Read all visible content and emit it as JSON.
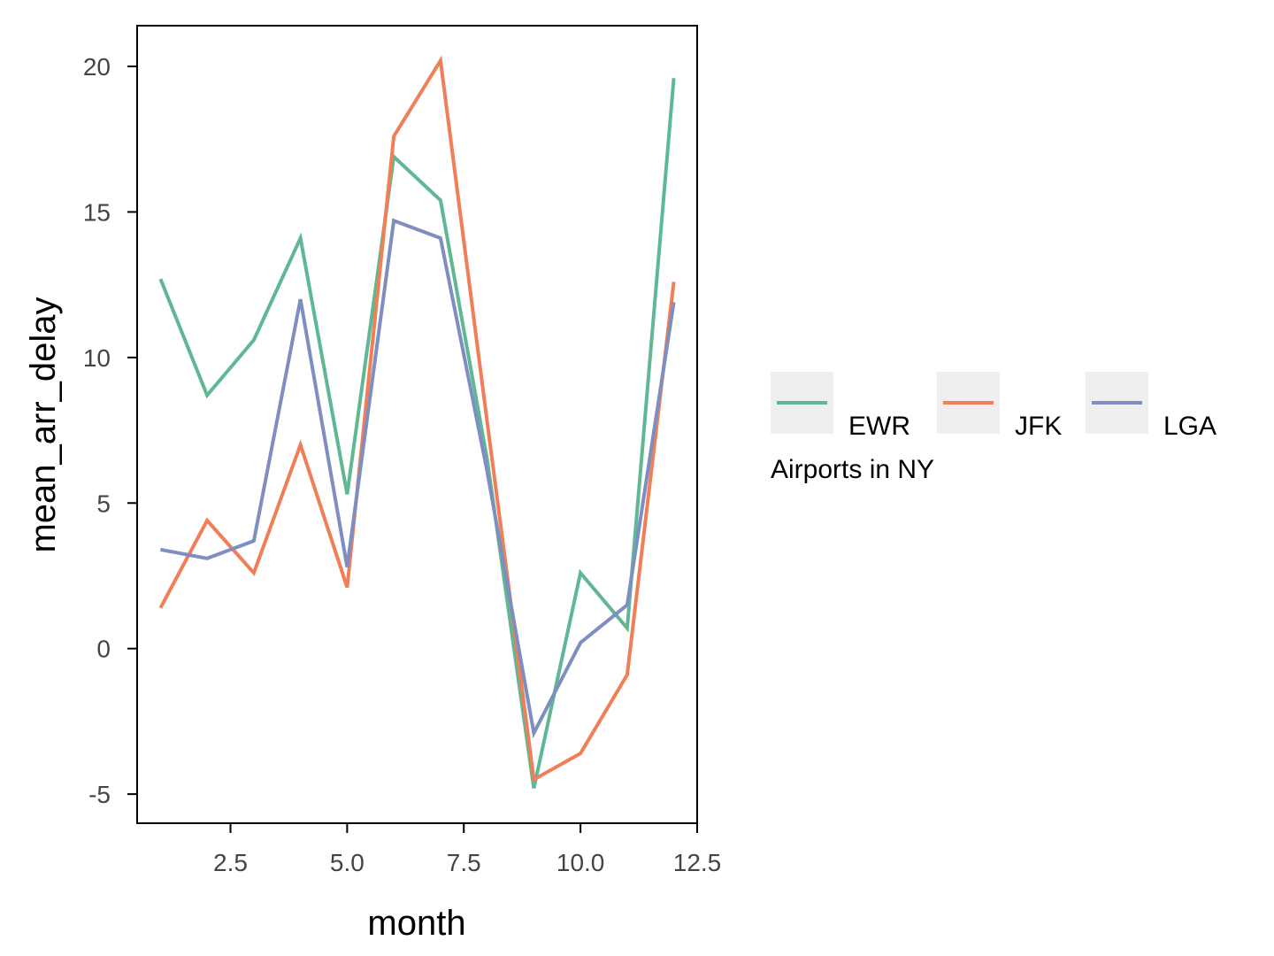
{
  "chart_data": {
    "type": "line",
    "xlabel": "month",
    "ylabel": "mean_arr_delay",
    "xlim": [
      0.5,
      12.5
    ],
    "ylim": [
      -6.0,
      21.4
    ],
    "xticks": [
      2.5,
      5.0,
      7.5,
      10.0,
      12.5
    ],
    "xtick_labels": [
      "2.5",
      "5.0",
      "7.5",
      "10.0",
      "12.5"
    ],
    "yticks": [
      -5,
      0,
      5,
      10,
      15,
      20
    ],
    "ytick_labels": [
      "-5",
      "0",
      "5",
      "10",
      "15",
      "20"
    ],
    "x": [
      1,
      2,
      3,
      4,
      5,
      6,
      7,
      8,
      9,
      10,
      11,
      12
    ],
    "series": [
      {
        "name": "EWR",
        "color": "#5fb893",
        "values": [
          12.7,
          8.7,
          10.6,
          14.1,
          5.3,
          16.9,
          15.4,
          6.5,
          -4.8,
          2.6,
          0.7,
          19.6
        ]
      },
      {
        "name": "JFK",
        "color": "#f07e56",
        "values": [
          1.4,
          4.4,
          2.6,
          7.0,
          2.1,
          17.6,
          20.2,
          7.8,
          -4.5,
          -3.6,
          -0.9,
          12.6
        ]
      },
      {
        "name": "LGA",
        "color": "#7e8ec0",
        "values": [
          3.4,
          3.1,
          3.7,
          12.0,
          2.8,
          14.7,
          14.1,
          6.1,
          -2.9,
          0.2,
          1.5,
          11.9
        ]
      }
    ],
    "legend_title": "Airports in NY",
    "legend_position": "right",
    "grid": false
  }
}
